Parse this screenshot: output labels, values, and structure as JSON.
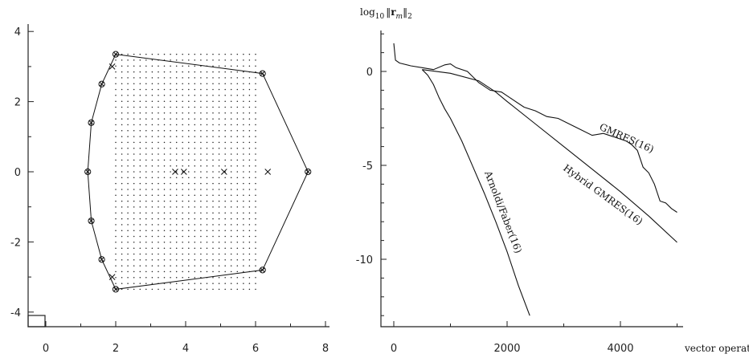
{
  "chart_data": [
    {
      "type": "scatter",
      "title": "",
      "xlabel": "",
      "ylabel": "",
      "xlim": [
        -0.5,
        8.5
      ],
      "ylim": [
        -4.2,
        4.2
      ],
      "x_ticks": [
        0,
        2,
        4,
        6,
        8
      ],
      "y_ticks": [
        4,
        2,
        0,
        -2,
        -4
      ],
      "x_tick_labels": [
        "0",
        "2",
        "4",
        "6",
        "8"
      ],
      "y_tick_labels": [
        "4",
        "2",
        "0",
        "-2",
        "-4"
      ],
      "dot_grid": {
        "x_from": 2.0,
        "x_to": 6.0,
        "x_count": 24,
        "y_from": -3.35,
        "y_to": 3.35,
        "y_count": 41
      },
      "polygon": [
        [
          2.0,
          3.35
        ],
        [
          6.2,
          2.8
        ],
        [
          7.5,
          0.0
        ],
        [
          6.2,
          -2.8
        ],
        [
          2.0,
          -3.35
        ],
        [
          1.6,
          -2.5
        ],
        [
          1.3,
          -1.4
        ],
        [
          1.2,
          0.0
        ],
        [
          1.3,
          1.4
        ],
        [
          1.6,
          2.5
        ]
      ],
      "circled_cross_vertices": [
        [
          2.0,
          3.35
        ],
        [
          6.2,
          2.8
        ],
        [
          7.5,
          0.0
        ],
        [
          6.2,
          -2.8
        ],
        [
          2.0,
          -3.35
        ],
        [
          1.6,
          -2.5
        ],
        [
          1.3,
          -1.4
        ],
        [
          1.2,
          0.0
        ],
        [
          1.3,
          1.4
        ],
        [
          1.6,
          2.5
        ]
      ],
      "cross_points": [
        [
          3.7,
          0.0
        ],
        [
          3.95,
          0.0
        ],
        [
          5.1,
          0.0
        ],
        [
          6.35,
          0.0
        ],
        [
          1.9,
          3.0
        ],
        [
          1.9,
          -3.0
        ]
      ],
      "grid": false
    },
    {
      "type": "line",
      "title": "",
      "xlabel": "vector operations",
      "ylabel": "log",
      "ylabel_sub": "10",
      "ylabel_norm_open": "‖",
      "ylabel_vector": "r",
      "ylabel_index": "m",
      "ylabel_norm_close": "‖",
      "ylabel_norm_sub": "2",
      "xlim": [
        -100,
        5100
      ],
      "ylim": [
        -13.5,
        3.5
      ],
      "x_ticks": [
        0,
        2000,
        4000
      ],
      "x_tick_labels": [
        "0",
        "2000",
        "4000"
      ],
      "y_ticks": [
        0,
        -5,
        -10
      ],
      "y_tick_labels": [
        "0",
        "-5",
        "-10"
      ],
      "grid": false,
      "series": [
        {
          "name": "GMRES(16)",
          "x": [
            0,
            30,
            100,
            300,
            500,
            700,
            900,
            1000,
            1100,
            1300,
            1500,
            1700,
            1900,
            2100,
            2300,
            2500,
            2700,
            2900,
            3100,
            3300,
            3500,
            3700,
            3900,
            4100,
            4200,
            4300,
            4400,
            4500,
            4600,
            4700,
            4800,
            4900,
            5000
          ],
          "y": [
            1.5,
            0.6,
            0.45,
            0.3,
            0.2,
            0.1,
            0.35,
            0.4,
            0.2,
            0.0,
            -0.6,
            -1.0,
            -1.1,
            -1.5,
            -1.9,
            -2.1,
            -2.4,
            -2.5,
            -2.8,
            -3.1,
            -3.4,
            -3.3,
            -3.5,
            -3.7,
            -3.9,
            -4.2,
            -5.1,
            -5.4,
            -6.0,
            -6.9,
            -7.0,
            -7.3,
            -7.5
          ]
        },
        {
          "name": "Hybrid GMRES(16)",
          "x": [
            500,
            1000,
            1500,
            1800,
            2000,
            2500,
            3000,
            3500,
            4000,
            4500,
            5000
          ],
          "y": [
            0.1,
            -0.1,
            -0.5,
            -1.1,
            -1.6,
            -2.8,
            -4.0,
            -5.2,
            -6.4,
            -7.7,
            -9.1
          ]
        },
        {
          "name": "Arnoldi/Faber(16)",
          "x": [
            500,
            600,
            700,
            800,
            900,
            1000,
            1200,
            1400,
            1600,
            1800,
            2000,
            2200,
            2400
          ],
          "y": [
            0.1,
            -0.2,
            -0.7,
            -1.4,
            -2.0,
            -2.5,
            -3.7,
            -5.1,
            -6.5,
            -8.0,
            -9.6,
            -11.4,
            -13.0
          ]
        }
      ],
      "series_labels": [
        {
          "text": "GMRES(16)",
          "series": 0
        },
        {
          "text": "Hybrid GMRES(16)",
          "series": 1
        },
        {
          "text": "Arnoldi/Faber(16)",
          "series": 2
        }
      ]
    }
  ]
}
